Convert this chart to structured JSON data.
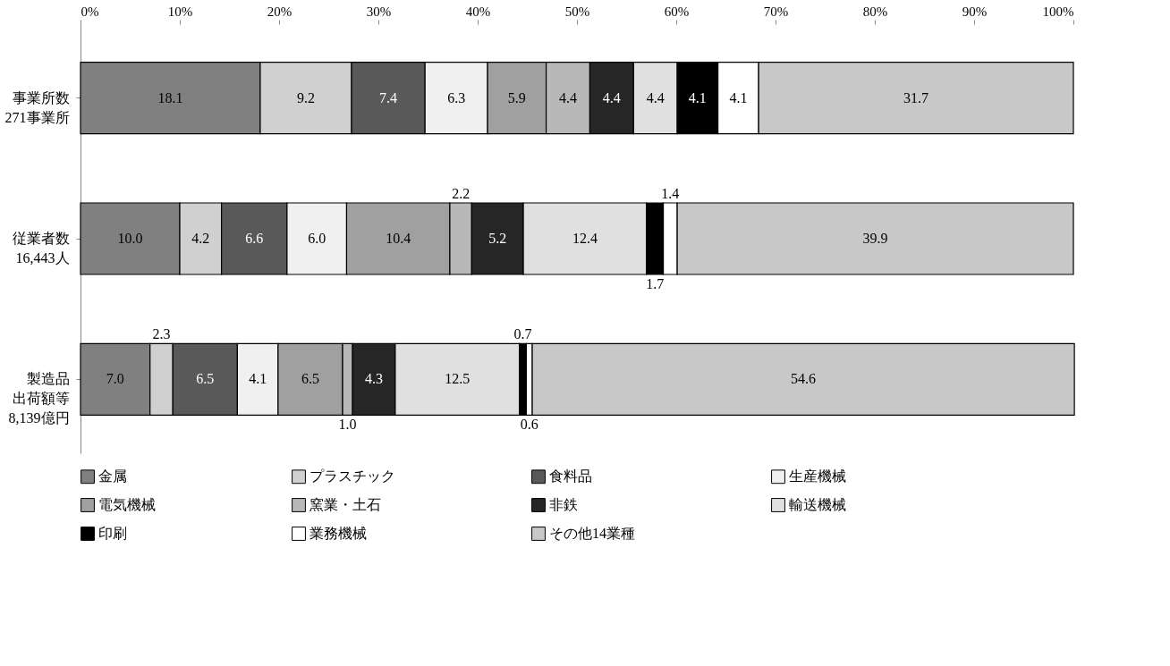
{
  "chart_data": {
    "type": "bar",
    "orientation": "horizontal",
    "stacked": true,
    "data_labels": true,
    "legend": "bottom",
    "grid": false,
    "categories": [
      "事業所数271事業所",
      "従業者数16,443人",
      "製造品出荷額等8,139億円"
    ],
    "xlim": [
      0,
      100
    ],
    "xticks": [
      {
        "value": 0,
        "label": "0%"
      },
      {
        "value": 10,
        "label": "10%"
      },
      {
        "value": 20,
        "label": "20%"
      },
      {
        "value": 30,
        "label": "30%"
      },
      {
        "value": 40,
        "label": "40%"
      },
      {
        "value": 50,
        "label": "50%"
      },
      {
        "value": 60,
        "label": "60%"
      },
      {
        "value": 70,
        "label": "70%"
      },
      {
        "value": 80,
        "label": "80%"
      },
      {
        "value": 90,
        "label": "90%"
      },
      {
        "value": 100,
        "label": "100%"
      }
    ],
    "series": [
      {
        "name": "金属",
        "color": "#808080",
        "values": [
          18.1,
          10.0,
          7.0
        ],
        "value_labels": [
          "18.1",
          "10.0",
          "7.0"
        ]
      },
      {
        "name": "プラスチック",
        "color": "#d0d0d0",
        "values": [
          9.2,
          4.2,
          2.3
        ]
      },
      {
        "name": "食料品",
        "color": "#595959",
        "values": [
          7.4,
          6.6,
          6.5
        ]
      },
      {
        "name": "生産機械",
        "color": "#f0f0f0",
        "values": [
          6.3,
          6.0,
          4.1
        ],
        "value_labels": [
          "6.3",
          "6.0",
          "4.1"
        ]
      },
      {
        "name": "電気機械",
        "color": "#a0a0a0",
        "values": [
          5.9,
          10.4,
          6.5
        ]
      },
      {
        "name": "窯業・土石",
        "color": "#b8b8b8",
        "values": [
          4.4,
          2.2,
          1.0
        ],
        "value_labels": [
          "4.4",
          "2.2",
          "1.0"
        ]
      },
      {
        "name": "非鉄",
        "color": "#262626",
        "values": [
          4.4,
          5.2,
          4.3
        ]
      },
      {
        "name": "輸送機械",
        "color": "#e0e0e0",
        "values": [
          4.4,
          12.4,
          12.5
        ]
      },
      {
        "name": "印刷",
        "color": "#000000",
        "values": [
          4.1,
          1.7,
          0.7
        ]
      },
      {
        "name": "業務機械",
        "color": "#ffffff",
        "values": [
          4.1,
          1.4,
          0.6
        ]
      },
      {
        "name": "その他14業種",
        "color": "#c8c8c8",
        "values": [
          31.7,
          39.9,
          54.6
        ]
      }
    ]
  }
}
